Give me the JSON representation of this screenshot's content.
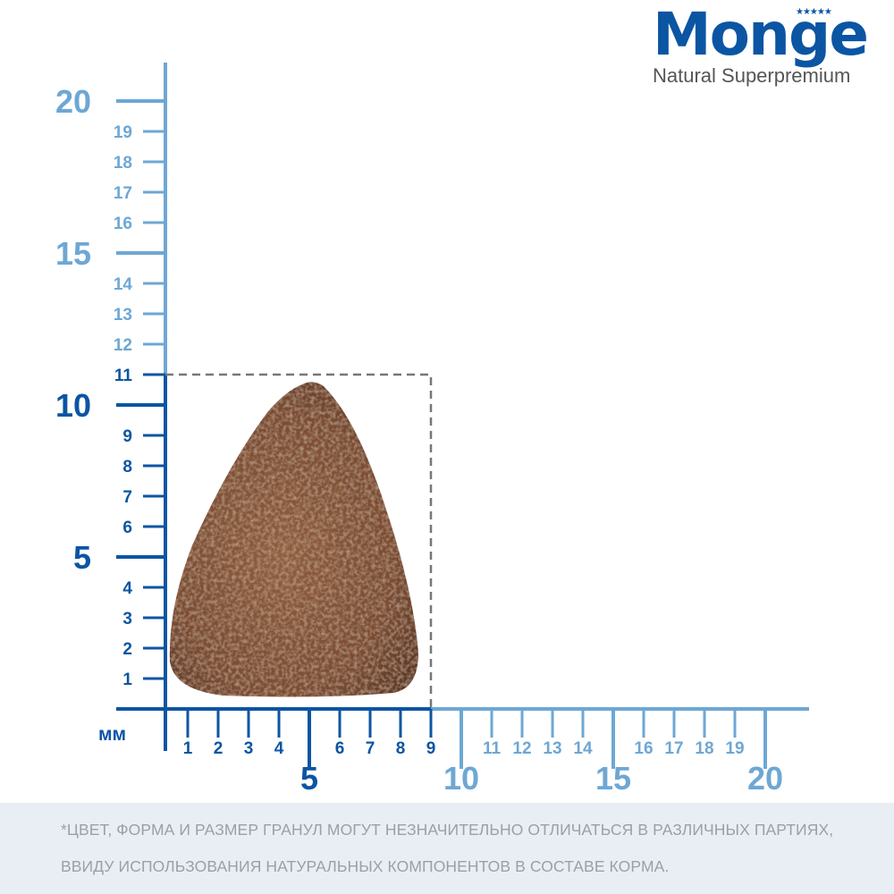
{
  "brand": {
    "name": "Monge",
    "tagline": "Natural Superpremium",
    "stars": "★★★★★"
  },
  "ruler": {
    "unit": "мм",
    "x_ticks": [
      1,
      2,
      3,
      4,
      5,
      6,
      7,
      8,
      9,
      10,
      11,
      12,
      13,
      14,
      15,
      16,
      17,
      18,
      19,
      20
    ],
    "y_ticks": [
      1,
      2,
      3,
      4,
      5,
      6,
      7,
      8,
      9,
      10,
      11,
      12,
      13,
      14,
      15,
      16,
      17,
      18,
      19,
      20
    ],
    "major_every": 5,
    "item_width_mm": 9,
    "item_height_mm": 11,
    "colors": {
      "within_item": "#0b55a3",
      "beyond_item": "#6ea7d4",
      "dashed_box": "#777777",
      "kibble": "#8a5a3a"
    }
  },
  "footer": {
    "line1": "*ЦВЕТ, ФОРМА И РАЗМЕР ГРАНУЛ МОГУТ НЕЗНАЧИТЕЛЬНО ОТЛИЧАТЬСЯ В РАЗЛИЧНЫХ ПАРТИЯХ,",
    "line2": "ВВИДУ ИСПОЛЬЗОВАНИЯ НАТУРАЛЬНЫХ КОМПОНЕНТОВ В СОСТАВЕ КОРМА."
  }
}
